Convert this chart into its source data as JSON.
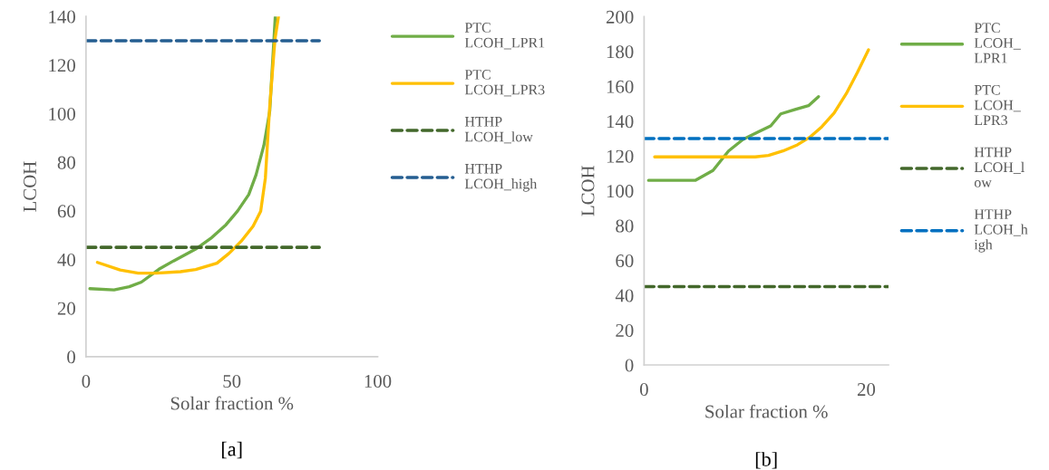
{
  "chart_data": [
    {
      "type": "line",
      "xlabel": "Solar fraction %",
      "ylabel": "LCOH",
      "xlim": [
        0,
        100
      ],
      "ylim": [
        0,
        140
      ],
      "xticks": [
        0,
        50,
        100
      ],
      "yticks": [
        0,
        20,
        40,
        60,
        80,
        100,
        120,
        140
      ],
      "legend": "right",
      "annotations": [
        "[a]"
      ],
      "series": [
        {
          "name": "PTC\nLCOH_LPR1",
          "color": "#70ad47",
          "line_style": "solid",
          "x": [
            1.3,
            9.6,
            14.8,
            19,
            25,
            30,
            37.6,
            42.8,
            48,
            52,
            55.8,
            58.3,
            61,
            63,
            64.9
          ],
          "values": [
            28,
            27.5,
            28.8,
            30.7,
            36,
            39.4,
            44.3,
            48.7,
            54.3,
            60,
            66.7,
            74.8,
            87,
            101,
            140
          ]
        },
        {
          "name": "PTC\nLCOH_LPR3",
          "color": "#ffc000",
          "line_style": "solid",
          "x": [
            3.9,
            11.7,
            17.9,
            24.1,
            32.4,
            37.6,
            44.9,
            49,
            53.2,
            57.3,
            59.9,
            61.5,
            63,
            64.8,
            66
          ],
          "values": [
            38.8,
            35.7,
            34.4,
            34.4,
            35,
            35.9,
            38.5,
            42.5,
            47.5,
            53.7,
            59.9,
            73.5,
            103,
            130.7,
            140
          ]
        },
        {
          "name": "HTHP\nLCOH_low",
          "color": "#43682b",
          "line_style": "dashed",
          "x": [
            0,
            80
          ],
          "values": [
            45,
            45
          ]
        },
        {
          "name": "HTHP\nLCOH_high",
          "color": "#255e91",
          "line_style": "dashed",
          "x": [
            0,
            80
          ],
          "values": [
            130,
            130
          ]
        }
      ]
    },
    {
      "type": "line",
      "xlabel": "Solar fraction %",
      "ylabel": "LCOH",
      "xlim": [
        0,
        22
      ],
      "ylim": [
        0,
        200
      ],
      "xticks": [
        0,
        20
      ],
      "yticks": [
        0,
        20,
        40,
        60,
        80,
        100,
        120,
        140,
        160,
        180,
        200
      ],
      "legend": "right",
      "annotations": [
        "[b]"
      ],
      "series": [
        {
          "name": "PTC\nLCOH_\nLPR1",
          "color": "#70ad47",
          "line_style": "solid",
          "x": [
            0.4,
            4.6,
            6.2,
            7.6,
            8.9,
            10.3,
            11.4,
            12.3,
            13.6,
            14.8,
            15.7
          ],
          "values": [
            106,
            106,
            111.7,
            122.9,
            129.5,
            133.9,
            137.3,
            144.2,
            146.7,
            148.9,
            154.1
          ]
        },
        {
          "name": "PTC\nLCOH_\nLPR3",
          "color": "#ffc000",
          "line_style": "solid",
          "x": [
            0.95,
            10,
            11.2,
            12.5,
            13.8,
            14.9,
            16,
            17.1,
            18.2,
            19.2,
            20.2
          ],
          "values": [
            119.5,
            119.5,
            120.3,
            122.9,
            126.4,
            130.7,
            136.8,
            144.6,
            155.8,
            168,
            181
          ]
        },
        {
          "name": "HTHP\nLCOH_l\now",
          "color": "#43682b",
          "line_style": "dashed",
          "x": [
            0,
            22
          ],
          "values": [
            45,
            45
          ]
        },
        {
          "name": "HTHP\nLCOH_h\nigh",
          "color": "#0070c0",
          "line_style": "dashed",
          "x": [
            0,
            22
          ],
          "values": [
            130,
            130
          ]
        }
      ]
    }
  ]
}
